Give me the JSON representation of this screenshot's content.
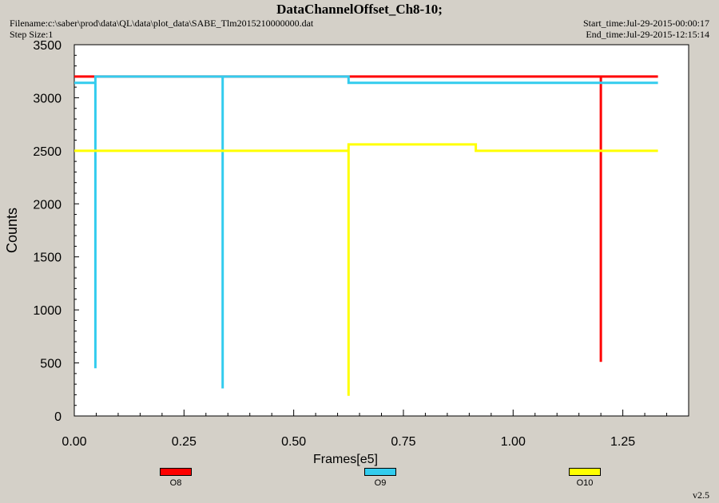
{
  "header": {
    "title": "DataChannelOffset_Ch8-10;",
    "filename": "Filename:c:\\saber\\prod\\data\\QL\\data\\plot_data\\SABE_Tlm2015210000000.dat",
    "step_size": "Step Size:1",
    "start_time": "Start_time:Jul-29-2015-00:00:17",
    "end_time": "End_time:Jul-29-2015-12:15:14"
  },
  "version": "v2.5",
  "chart_data": {
    "type": "line",
    "title": "DataChannelOffset_Ch8-10;",
    "xlabel": "Frames[e5]",
    "ylabel": "Counts",
    "xlim": [
      0.0,
      1.4
    ],
    "ylim": [
      0,
      3500
    ],
    "xticks": [
      0.0,
      0.25,
      0.5,
      0.75,
      1.0,
      1.25
    ],
    "xtick_labels": [
      "0.00",
      "0.25",
      "0.50",
      "0.75",
      "1.00",
      "1.25"
    ],
    "yticks": [
      0,
      500,
      1000,
      1500,
      2000,
      2500,
      3000,
      3500
    ],
    "ytick_labels": [
      "0",
      "500",
      "1000",
      "1500",
      "2000",
      "2500",
      "3000",
      "3500"
    ],
    "grid": false,
    "legend_position": "bottom",
    "series": [
      {
        "name": "O8",
        "color": "#ff0000",
        "x": [
          0.0,
          1.2,
          1.2,
          1.2,
          1.33
        ],
        "y": [
          3200,
          3200,
          510,
          3200,
          3200
        ]
      },
      {
        "name": "O9",
        "color": "#33ccee",
        "x": [
          0.0,
          0.048,
          0.048,
          0.048,
          0.048,
          0.338,
          0.338,
          0.338,
          0.625,
          0.625,
          1.33
        ],
        "y": [
          3140,
          3140,
          450,
          3140,
          3200,
          3200,
          260,
          3200,
          3200,
          3140,
          3140
        ]
      },
      {
        "name": "O10",
        "color": "#ffff00",
        "x": [
          0.0,
          0.625,
          0.625,
          0.625,
          0.915,
          0.915,
          1.33
        ],
        "y": [
          2500,
          2500,
          190,
          2560,
          2560,
          2500,
          2500
        ]
      }
    ]
  }
}
